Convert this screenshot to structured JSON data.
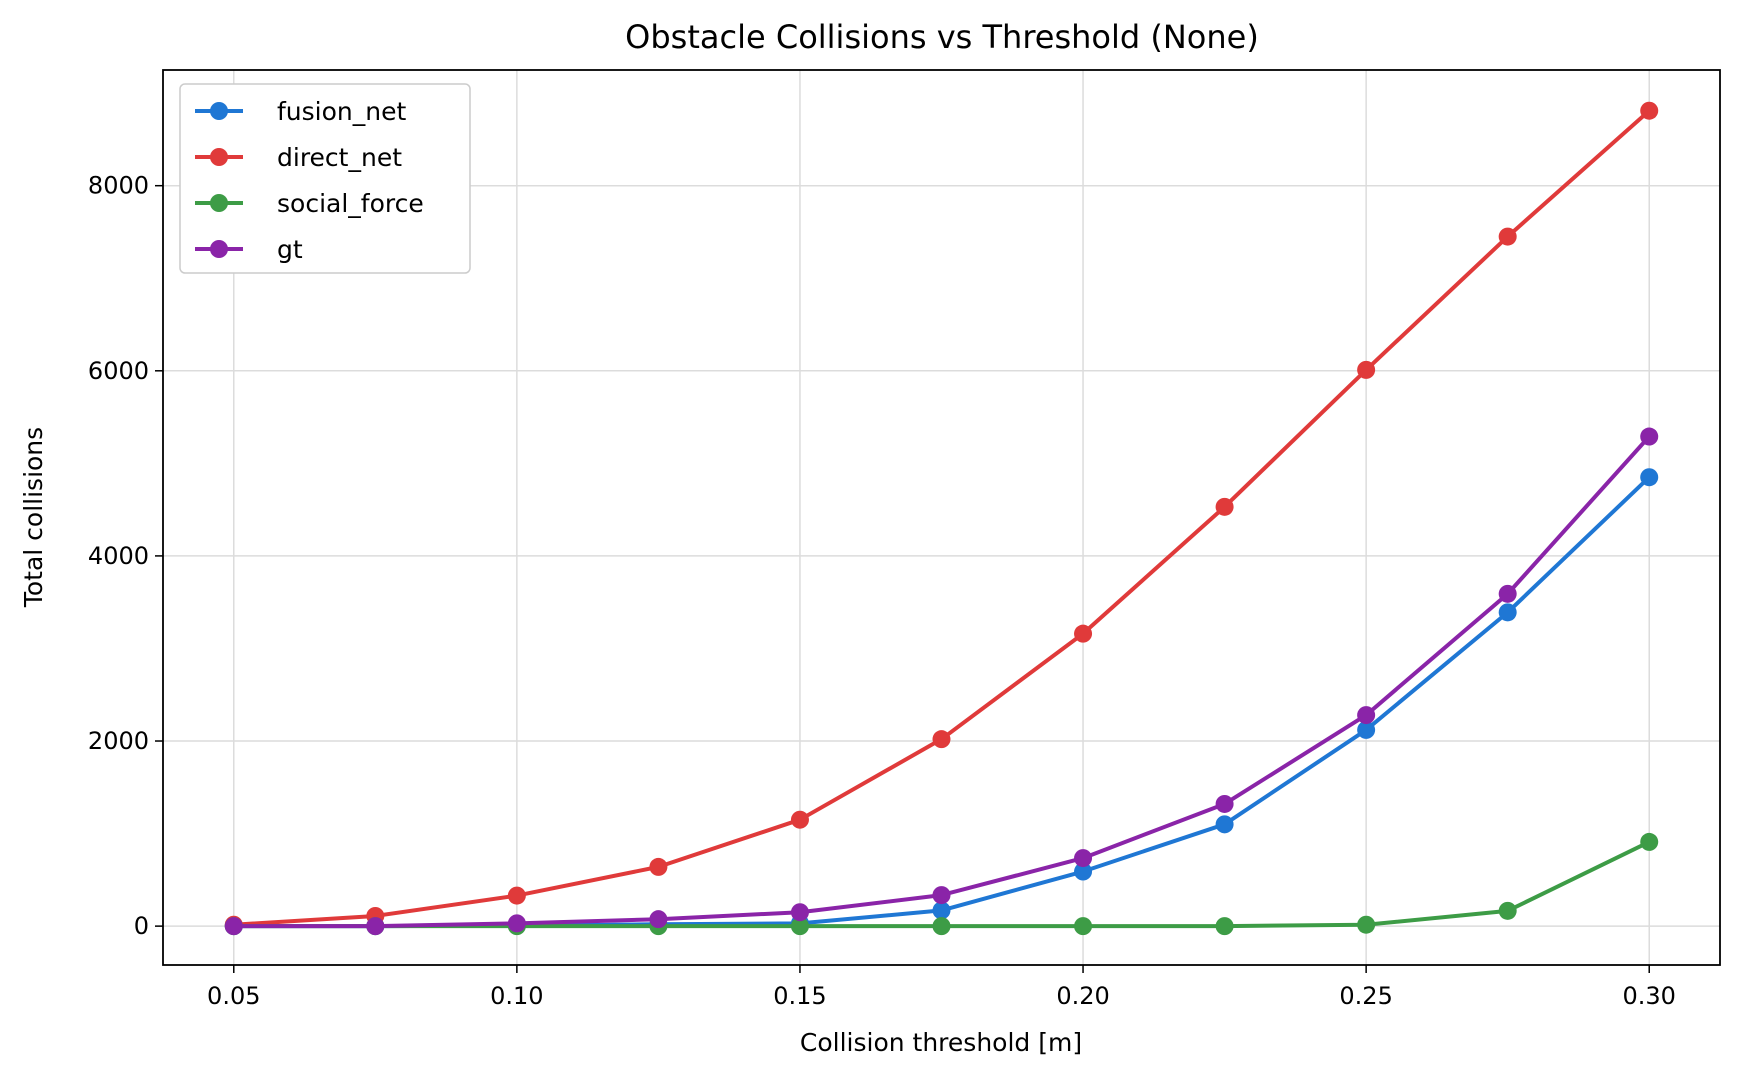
{
  "chart_data": {
    "type": "line",
    "title": "Obstacle Collisions vs Threshold (None)",
    "xlabel": "Collision threshold [m]",
    "ylabel": "Total collisions",
    "x": [
      0.05,
      0.075,
      0.1,
      0.125,
      0.15,
      0.175,
      0.2,
      0.225,
      0.25,
      0.275,
      0.3
    ],
    "xlim": [
      0.0375,
      0.3125
    ],
    "ylim": [
      -420,
      9250
    ],
    "xticks": [
      0.05,
      0.1,
      0.15,
      0.2,
      0.25,
      0.3
    ],
    "xtick_labels": [
      "0.05",
      "0.10",
      "0.15",
      "0.20",
      "0.25",
      "0.30"
    ],
    "yticks": [
      0,
      2000,
      4000,
      6000,
      8000
    ],
    "ytick_labels": [
      "0",
      "2000",
      "4000",
      "6000",
      "8000"
    ],
    "grid": true,
    "legend_position": "top-left",
    "series": [
      {
        "name": "fusion_net",
        "color": "#1f77d4",
        "values": [
          0,
          0,
          5,
          20,
          30,
          170,
          590,
          1100,
          2120,
          3390,
          4850
        ]
      },
      {
        "name": "direct_net",
        "color": "#e03a3a",
        "values": [
          15,
          110,
          330,
          640,
          1150,
          2020,
          3160,
          4530,
          6010,
          7450,
          8810
        ]
      },
      {
        "name": "social_force",
        "color": "#3d9c46",
        "values": [
          0,
          0,
          0,
          0,
          0,
          0,
          0,
          0,
          15,
          165,
          910
        ]
      },
      {
        "name": "gt",
        "color": "#8a24a8",
        "values": [
          0,
          0,
          30,
          75,
          150,
          335,
          735,
          1320,
          2280,
          3590,
          5290
        ]
      }
    ]
  }
}
